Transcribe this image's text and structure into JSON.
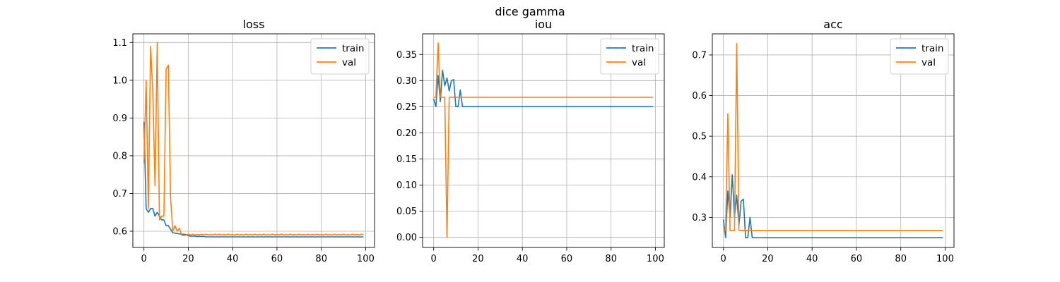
{
  "figure": {
    "title": "dice gamma"
  },
  "chart_data": [
    {
      "type": "line",
      "title": "loss",
      "xlabel": "",
      "ylabel": "",
      "xlim": [
        -5,
        104
      ],
      "ylim": [
        0.557,
        1.123
      ],
      "xticks": [
        0,
        20,
        40,
        60,
        80,
        100
      ],
      "yticks": [
        0.6,
        0.7,
        0.8,
        0.9,
        1.0,
        1.1
      ],
      "ytick_labels": [
        "0.6",
        "0.7",
        "0.8",
        "0.9",
        "1.0",
        "1.1"
      ],
      "grid": true,
      "legend_position": "top-right",
      "series": [
        {
          "name": "train",
          "color": "#1f77b4",
          "x_start": 0,
          "values": [
            0.89,
            0.66,
            0.65,
            0.66,
            0.66,
            0.64,
            0.65,
            0.64,
            0.63,
            0.63,
            0.615,
            0.615,
            0.605,
            0.596,
            0.595,
            0.594,
            0.593,
            0.592,
            0.592,
            0.591,
            0.588,
            0.587,
            0.587,
            0.587,
            0.586,
            0.586,
            0.586,
            0.586,
            0.585,
            0.585,
            0.585,
            0.585,
            0.585,
            0.585,
            0.585,
            0.585,
            0.585,
            0.585,
            0.585,
            0.585,
            0.585,
            0.585,
            0.585,
            0.585,
            0.585,
            0.585,
            0.585,
            0.585,
            0.585,
            0.585,
            0.585,
            0.585,
            0.585,
            0.585,
            0.585,
            0.585,
            0.585,
            0.585,
            0.585,
            0.585,
            0.585,
            0.585,
            0.585,
            0.585,
            0.585,
            0.585,
            0.585,
            0.585,
            0.585,
            0.585,
            0.585,
            0.585,
            0.585,
            0.585,
            0.585,
            0.585,
            0.585,
            0.585,
            0.585,
            0.585,
            0.585,
            0.585,
            0.585,
            0.585,
            0.585,
            0.585,
            0.585,
            0.585,
            0.585,
            0.585,
            0.585,
            0.585,
            0.585,
            0.585,
            0.585,
            0.585,
            0.585,
            0.585,
            0.585,
            0.585
          ]
        },
        {
          "name": "val",
          "color": "#ff7f0e",
          "x_start": 0,
          "values": [
            0.78,
            1.0,
            0.66,
            1.09,
            0.97,
            0.72,
            1.1,
            0.63,
            0.64,
            0.64,
            1.03,
            1.04,
            0.69,
            0.6,
            0.615,
            0.6,
            0.608,
            0.59,
            0.588,
            0.59,
            0.592,
            0.59,
            0.592,
            0.59,
            0.591,
            0.59,
            0.592,
            0.59,
            0.592,
            0.59,
            0.591,
            0.59,
            0.592,
            0.59,
            0.592,
            0.59,
            0.591,
            0.59,
            0.592,
            0.59,
            0.591,
            0.59,
            0.592,
            0.59,
            0.591,
            0.59,
            0.592,
            0.59,
            0.591,
            0.59,
            0.592,
            0.59,
            0.591,
            0.59,
            0.592,
            0.59,
            0.591,
            0.59,
            0.592,
            0.59,
            0.591,
            0.59,
            0.592,
            0.59,
            0.591,
            0.59,
            0.592,
            0.59,
            0.591,
            0.59,
            0.592,
            0.59,
            0.591,
            0.59,
            0.592,
            0.59,
            0.591,
            0.59,
            0.592,
            0.59,
            0.591,
            0.59,
            0.592,
            0.59,
            0.591,
            0.59,
            0.592,
            0.59,
            0.591,
            0.59,
            0.592,
            0.59,
            0.591,
            0.59,
            0.592,
            0.59,
            0.591,
            0.59,
            0.592,
            0.591
          ]
        }
      ]
    },
    {
      "type": "line",
      "title": "iou",
      "xlabel": "",
      "ylabel": "",
      "xlim": [
        -5,
        104
      ],
      "ylim": [
        -0.0195,
        0.3895
      ],
      "xticks": [
        0,
        20,
        40,
        60,
        80,
        100
      ],
      "yticks": [
        0.0,
        0.05,
        0.1,
        0.15,
        0.2,
        0.25,
        0.3,
        0.35
      ],
      "ytick_labels": [
        "0.00",
        "0.05",
        "0.10",
        "0.15",
        "0.20",
        "0.25",
        "0.30",
        "0.35"
      ],
      "grid": true,
      "legend_position": "top-right",
      "series": [
        {
          "name": "train",
          "color": "#1f77b4",
          "x_start": 0,
          "values": [
            0.265,
            0.25,
            0.31,
            0.26,
            0.32,
            0.29,
            0.305,
            0.28,
            0.3,
            0.302,
            0.25,
            0.25,
            0.282,
            0.25,
            0.25,
            0.25,
            0.25,
            0.25,
            0.25,
            0.25,
            0.25,
            0.25,
            0.25,
            0.25,
            0.25,
            0.25,
            0.25,
            0.25,
            0.25,
            0.25,
            0.25,
            0.25,
            0.25,
            0.25,
            0.25,
            0.25,
            0.25,
            0.25,
            0.25,
            0.25,
            0.25,
            0.25,
            0.25,
            0.25,
            0.25,
            0.25,
            0.25,
            0.25,
            0.25,
            0.25,
            0.25,
            0.25,
            0.25,
            0.25,
            0.25,
            0.25,
            0.25,
            0.25,
            0.25,
            0.25,
            0.25,
            0.25,
            0.25,
            0.25,
            0.25,
            0.25,
            0.25,
            0.25,
            0.25,
            0.25,
            0.25,
            0.25,
            0.25,
            0.25,
            0.25,
            0.25,
            0.25,
            0.25,
            0.25,
            0.25,
            0.25,
            0.25,
            0.25,
            0.25,
            0.25,
            0.25,
            0.25,
            0.25,
            0.25,
            0.25,
            0.25,
            0.25,
            0.25,
            0.25,
            0.25,
            0.25,
            0.25,
            0.25,
            0.25,
            0.25
          ]
        },
        {
          "name": "val",
          "color": "#ff7f0e",
          "x_start": 0,
          "values": [
            0.268,
            0.268,
            0.372,
            0.268,
            0.268,
            0.268,
            0.0,
            0.268,
            0.268,
            0.268,
            0.268,
            0.268,
            0.268,
            0.268,
            0.268,
            0.268,
            0.268,
            0.268,
            0.268,
            0.268,
            0.268,
            0.268,
            0.268,
            0.268,
            0.268,
            0.268,
            0.268,
            0.268,
            0.268,
            0.268,
            0.268,
            0.268,
            0.268,
            0.268,
            0.268,
            0.268,
            0.268,
            0.268,
            0.268,
            0.268,
            0.268,
            0.268,
            0.268,
            0.268,
            0.268,
            0.268,
            0.268,
            0.268,
            0.268,
            0.268,
            0.268,
            0.268,
            0.268,
            0.268,
            0.268,
            0.268,
            0.268,
            0.268,
            0.268,
            0.268,
            0.268,
            0.268,
            0.268,
            0.268,
            0.268,
            0.268,
            0.268,
            0.268,
            0.268,
            0.268,
            0.268,
            0.268,
            0.268,
            0.268,
            0.268,
            0.268,
            0.268,
            0.268,
            0.268,
            0.268,
            0.268,
            0.268,
            0.268,
            0.268,
            0.268,
            0.268,
            0.268,
            0.268,
            0.268,
            0.268,
            0.268,
            0.268,
            0.268,
            0.268,
            0.268,
            0.268,
            0.268,
            0.268,
            0.268,
            0.268
          ]
        }
      ]
    },
    {
      "type": "line",
      "title": "acc",
      "xlabel": "",
      "ylabel": "",
      "xlim": [
        -5,
        104
      ],
      "ylim": [
        0.226,
        0.752
      ],
      "xticks": [
        0,
        20,
        40,
        60,
        80,
        100
      ],
      "yticks": [
        0.3,
        0.4,
        0.5,
        0.6,
        0.7
      ],
      "ytick_labels": [
        "0.3",
        "0.4",
        "0.5",
        "0.6",
        "0.7"
      ],
      "grid": true,
      "legend_position": "top-right",
      "series": [
        {
          "name": "train",
          "color": "#1f77b4",
          "x_start": 0,
          "values": [
            0.295,
            0.25,
            0.365,
            0.3,
            0.405,
            0.3,
            0.355,
            0.28,
            0.34,
            0.345,
            0.25,
            0.25,
            0.3,
            0.25,
            0.25,
            0.25,
            0.25,
            0.25,
            0.25,
            0.25,
            0.25,
            0.25,
            0.25,
            0.25,
            0.25,
            0.25,
            0.25,
            0.25,
            0.25,
            0.25,
            0.25,
            0.25,
            0.25,
            0.25,
            0.25,
            0.25,
            0.25,
            0.25,
            0.25,
            0.25,
            0.25,
            0.25,
            0.25,
            0.25,
            0.25,
            0.25,
            0.25,
            0.25,
            0.25,
            0.25,
            0.25,
            0.25,
            0.25,
            0.25,
            0.25,
            0.25,
            0.25,
            0.25,
            0.25,
            0.25,
            0.25,
            0.25,
            0.25,
            0.25,
            0.25,
            0.25,
            0.25,
            0.25,
            0.25,
            0.25,
            0.25,
            0.25,
            0.25,
            0.25,
            0.25,
            0.25,
            0.25,
            0.25,
            0.25,
            0.25,
            0.25,
            0.25,
            0.25,
            0.25,
            0.25,
            0.25,
            0.25,
            0.25,
            0.25,
            0.25,
            0.25,
            0.25,
            0.25,
            0.25,
            0.25,
            0.25,
            0.25,
            0.25,
            0.25,
            0.25
          ]
        },
        {
          "name": "val",
          "color": "#ff7f0e",
          "x_start": 0,
          "values": [
            0.268,
            0.268,
            0.555,
            0.268,
            0.268,
            0.268,
            0.728,
            0.268,
            0.268,
            0.268,
            0.268,
            0.268,
            0.268,
            0.268,
            0.268,
            0.268,
            0.268,
            0.268,
            0.268,
            0.268,
            0.268,
            0.268,
            0.268,
            0.268,
            0.268,
            0.268,
            0.268,
            0.268,
            0.268,
            0.268,
            0.268,
            0.268,
            0.268,
            0.268,
            0.268,
            0.268,
            0.268,
            0.268,
            0.268,
            0.268,
            0.268,
            0.268,
            0.268,
            0.268,
            0.268,
            0.268,
            0.268,
            0.268,
            0.268,
            0.268,
            0.268,
            0.268,
            0.268,
            0.268,
            0.268,
            0.268,
            0.268,
            0.268,
            0.268,
            0.268,
            0.268,
            0.268,
            0.268,
            0.268,
            0.268,
            0.268,
            0.268,
            0.268,
            0.268,
            0.268,
            0.268,
            0.268,
            0.268,
            0.268,
            0.268,
            0.268,
            0.268,
            0.268,
            0.268,
            0.268,
            0.268,
            0.268,
            0.268,
            0.268,
            0.268,
            0.268,
            0.268,
            0.268,
            0.268,
            0.268,
            0.268,
            0.268,
            0.268,
            0.268,
            0.268,
            0.268,
            0.268,
            0.268,
            0.268,
            0.268
          ]
        }
      ]
    }
  ]
}
